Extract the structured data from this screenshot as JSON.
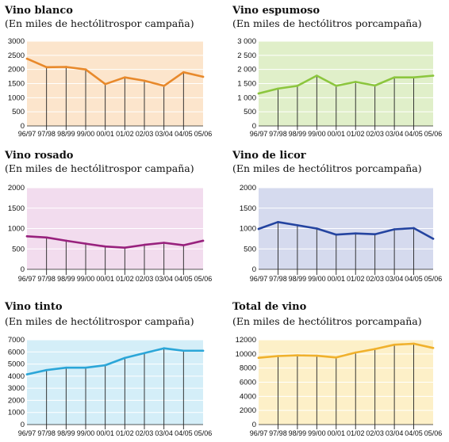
{
  "chart_data": [
    {
      "type": "line",
      "title": "Vino blanco",
      "subtitle": "(En miles de hectólitrospor campaña)",
      "categories": [
        "96/97",
        "97/98",
        "98/99",
        "99/00",
        "00/01",
        "01/02",
        "02/03",
        "03/04",
        "04/05",
        "05/06"
      ],
      "values": [
        2380,
        2080,
        2090,
        2000,
        1480,
        1720,
        1600,
        1420,
        1900,
        1740
      ],
      "ylim": [
        0,
        3000
      ],
      "yticks": [
        "0",
        "500",
        "1000",
        "1500",
        "2000",
        "2500",
        "3000"
      ],
      "ytick_values": [
        0,
        500,
        1000,
        1500,
        2000,
        2500,
        3000
      ],
      "xlabels": [
        "96/97",
        "97/98",
        "98/99",
        "99/00",
        "00/01",
        "01/02",
        "02/03",
        "03/04",
        "04/05",
        "05/06"
      ],
      "bg_color": "#fce5cc",
      "line_color": "#e8892b"
    },
    {
      "type": "line",
      "title": "Vino espumoso",
      "subtitle": "(En miles de hectólitros porcampaña)",
      "categories": [
        "96/97",
        "97/98",
        "98/99",
        "99/00",
        "00/01",
        "01/02",
        "02/03",
        "03/04",
        "04/05",
        "05/06"
      ],
      "values": [
        1150,
        1320,
        1420,
        1780,
        1420,
        1560,
        1430,
        1720,
        1720,
        1780
      ],
      "ylim": [
        0,
        3000
      ],
      "yticks": [
        "0",
        "500",
        "1 000",
        "1 500",
        "2 000",
        "2 500",
        "3 000"
      ],
      "ytick_values": [
        0,
        500,
        1000,
        1500,
        2000,
        2500,
        3000
      ],
      "xlabels": [
        "96/97",
        "97/98",
        "98/99",
        "99/00",
        "00/01",
        "01/02",
        "02/03",
        "03/04",
        "04/05",
        "05/06"
      ],
      "bg_color": "#e0efc9",
      "line_color": "#8cc63e"
    },
    {
      "type": "line",
      "title": "Vino rosado",
      "subtitle": "(En miles de hectólitrospor campaña)",
      "categories": [
        "96/97",
        "97/98",
        "98/99",
        "99/00",
        "00/01",
        "01/02",
        "02/03",
        "03/04",
        "04/05",
        "05/06"
      ],
      "values": [
        810,
        780,
        700,
        630,
        560,
        530,
        600,
        650,
        590,
        700
      ],
      "ylim": [
        0,
        2000
      ],
      "yticks": [
        "0",
        "500",
        "1000",
        "1500",
        "2000"
      ],
      "ytick_values": [
        0,
        500,
        1000,
        1500,
        2000
      ],
      "xlabels": [
        "96/97",
        "97/98",
        "98/99",
        "99/00",
        "00/01",
        "01/02",
        "02/03",
        "03/04",
        "04/05",
        "05/06"
      ],
      "bg_color": "#f2dcee",
      "line_color": "#98217d"
    },
    {
      "type": "line",
      "title": "Vino de licor",
      "subtitle": "(En miles de hectólitros porcampaña)",
      "categories": [
        "96/97",
        "97/98",
        "98/99",
        "99/00",
        "00/01",
        "01/02",
        "02/03",
        "03/04",
        "04/05",
        "05/06"
      ],
      "values": [
        990,
        1160,
        1080,
        1000,
        850,
        880,
        860,
        980,
        1010,
        750
      ],
      "ylim": [
        0,
        2000
      ],
      "yticks": [
        "0",
        "500",
        "1000",
        "1500",
        "2000"
      ],
      "ytick_values": [
        0,
        500,
        1000,
        1500,
        2000
      ],
      "xlabels": [
        "96/97",
        "97/98",
        "98/99",
        "99/00",
        "00/01",
        "01/02",
        "02/03",
        "03/04",
        "04/05",
        "05/06"
      ],
      "bg_color": "#d5daee",
      "line_color": "#2444a0"
    },
    {
      "type": "line",
      "title": "Vino tinto",
      "subtitle": "(En miles de hectólitrospor campaña)",
      "categories": [
        "96/97",
        "97/98",
        "98/99",
        "99/00",
        "00/01",
        "01/02",
        "02/03",
        "03/04",
        "04/05",
        "05/06"
      ],
      "values": [
        4150,
        4500,
        4700,
        4700,
        4900,
        5500,
        5900,
        6300,
        6100,
        6100
      ],
      "ylim": [
        0,
        7000
      ],
      "yticks": [
        "0",
        "1000",
        "2000",
        "3000",
        "4000",
        "5000",
        "6000",
        "7000"
      ],
      "ytick_values": [
        0,
        1000,
        2000,
        3000,
        4000,
        5000,
        6000,
        7000
      ],
      "xlabels": [
        "96/97",
        "97/98",
        "98/99",
        "99/00",
        "00/01",
        "01/02",
        "02/03",
        "03/04",
        "04/05",
        "05/06"
      ],
      "bg_color": "#d4eef8",
      "line_color": "#2ba6d8"
    },
    {
      "type": "line",
      "title": "Total de vino",
      "subtitle": "(En miles de hectólitros porcampaña)",
      "categories": [
        "96/97",
        "97/98",
        "98/99",
        "99/00",
        "00/01",
        "01/02",
        "02/03",
        "03/04",
        "04/05",
        "05/06"
      ],
      "values": [
        9450,
        9700,
        9800,
        9750,
        9500,
        10200,
        10700,
        11300,
        11450,
        10850
      ],
      "ylim": [
        0,
        12000
      ],
      "yticks": [
        "0",
        "2000",
        "4000",
        "6000",
        "8000",
        "10000",
        "12000"
      ],
      "ytick_values": [
        0,
        2000,
        4000,
        6000,
        8000,
        10000,
        12000
      ],
      "xlabels": [
        "96/97",
        "97/98",
        "98/99",
        "99/00",
        "00/01",
        "01/02",
        "02/03",
        "03/04",
        "04/05",
        "05/06"
      ],
      "bg_color": "#fdf0c8",
      "line_color": "#f0b12c"
    }
  ]
}
